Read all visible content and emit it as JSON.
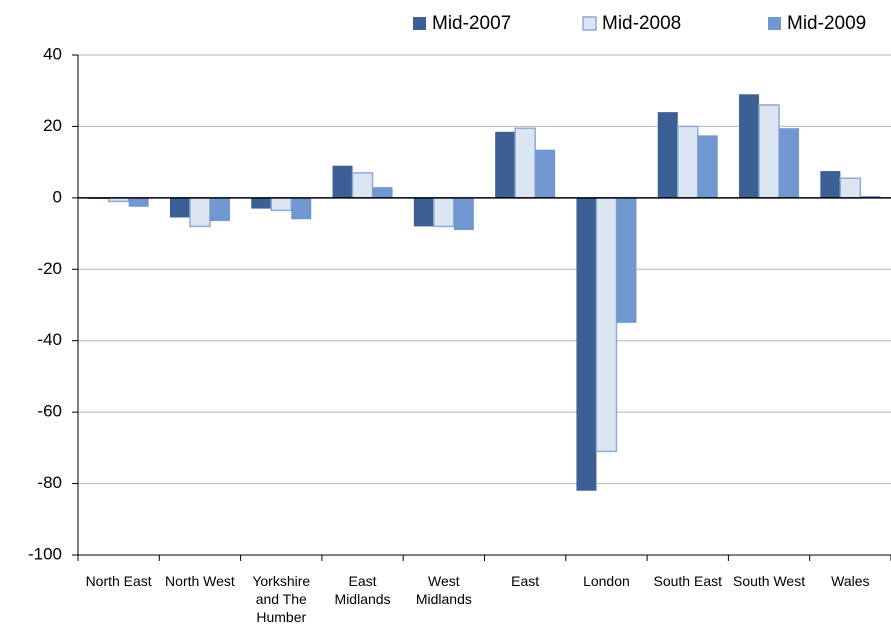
{
  "chart_data": {
    "type": "bar",
    "categories": [
      "North East",
      "North West",
      "Yorkshire and The Humber",
      "East Midlands",
      "West Midlands",
      "East",
      "London",
      "South East",
      "South West",
      "Wales"
    ],
    "series": [
      {
        "name": "Mid-2007",
        "color": "#3c5f94",
        "values": [
          -0.3,
          -5.5,
          -3,
          9,
          -8,
          18.5,
          -82,
          24,
          29,
          7.5
        ]
      },
      {
        "name": "Mid-2008",
        "color": "#dce6f2",
        "edgecolor": "#8eaad6",
        "values": [
          -1,
          -8,
          -3.5,
          7,
          -8,
          19.5,
          -71,
          20,
          26,
          5.5
        ]
      },
      {
        "name": "Mid-2009",
        "color": "#7097cf",
        "values": [
          -2.5,
          -6.5,
          -6,
          3,
          -9,
          13.5,
          -35,
          17.5,
          19.5,
          0.5
        ]
      }
    ],
    "ylim": [
      -100,
      40
    ],
    "yticks": [
      -100,
      -80,
      -60,
      -40,
      -20,
      0,
      20,
      40
    ],
    "grid": true
  }
}
